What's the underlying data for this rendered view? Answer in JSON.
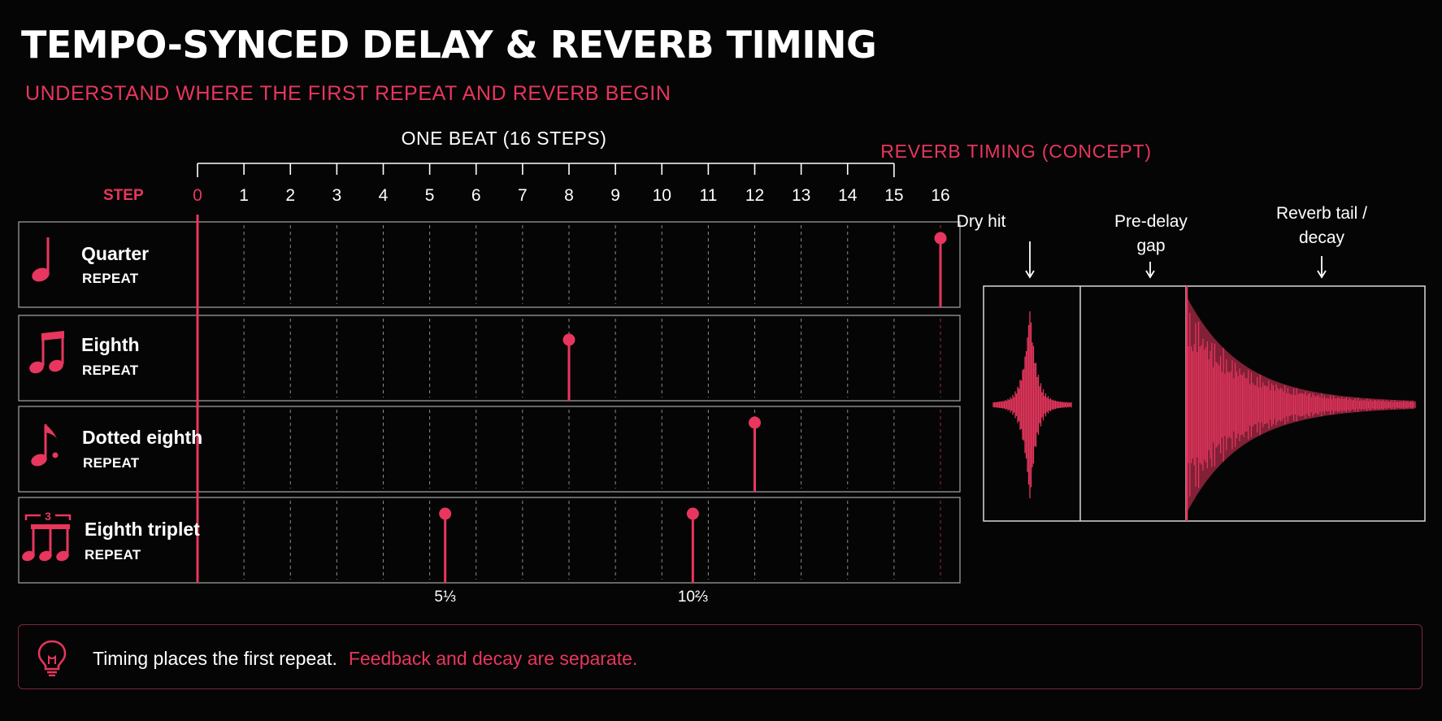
{
  "title": "TEMPO-SYNCED DELAY & REVERB TIMING",
  "subtitle": "UNDERSTAND WHERE THE FIRST REPEAT AND REVERB BEGIN",
  "timeline": {
    "header": "ONE BEAT (16 STEPS)",
    "step_label": "STEP",
    "steps": [
      "0",
      "1",
      "2",
      "3",
      "4",
      "5",
      "6",
      "7",
      "8",
      "9",
      "10",
      "11",
      "12",
      "13",
      "14",
      "15",
      "16"
    ]
  },
  "rows": [
    {
      "name": "Quarter",
      "sub": "REPEAT",
      "icon": "quarter-note-icon",
      "hits": [
        16
      ]
    },
    {
      "name": "Eighth",
      "sub": "REPEAT",
      "icon": "eighth-notes-icon",
      "hits": [
        8
      ]
    },
    {
      "name": "Dotted eighth",
      "sub": "REPEAT",
      "icon": "dotted-eighth-note-icon",
      "hits": [
        12
      ]
    },
    {
      "name": "Eighth triplet",
      "sub": "REPEAT",
      "icon": "eighth-triplet-icon",
      "hits": [
        5.333,
        10.667
      ],
      "triplet_mark": "3"
    }
  ],
  "fraction_labels": [
    {
      "value": 5.333,
      "text": "5⅓"
    },
    {
      "value": 10.667,
      "text": "10⅔"
    }
  ],
  "reverb": {
    "title": "REVERB TIMING (CONCEPT)",
    "labels": [
      {
        "line1": "Dry hit",
        "line2": ""
      },
      {
        "line1": "Pre-delay",
        "line2": "gap"
      },
      {
        "line1": "Reverb tail /",
        "line2": "decay"
      }
    ]
  },
  "note": {
    "icon": "lightbulb-icon",
    "text": "Timing places the first repeat.",
    "accent_text": "Feedback and decay are separate."
  },
  "colors": {
    "accent": "#e8365e",
    "background": "#050505",
    "line": "#ffffff"
  }
}
